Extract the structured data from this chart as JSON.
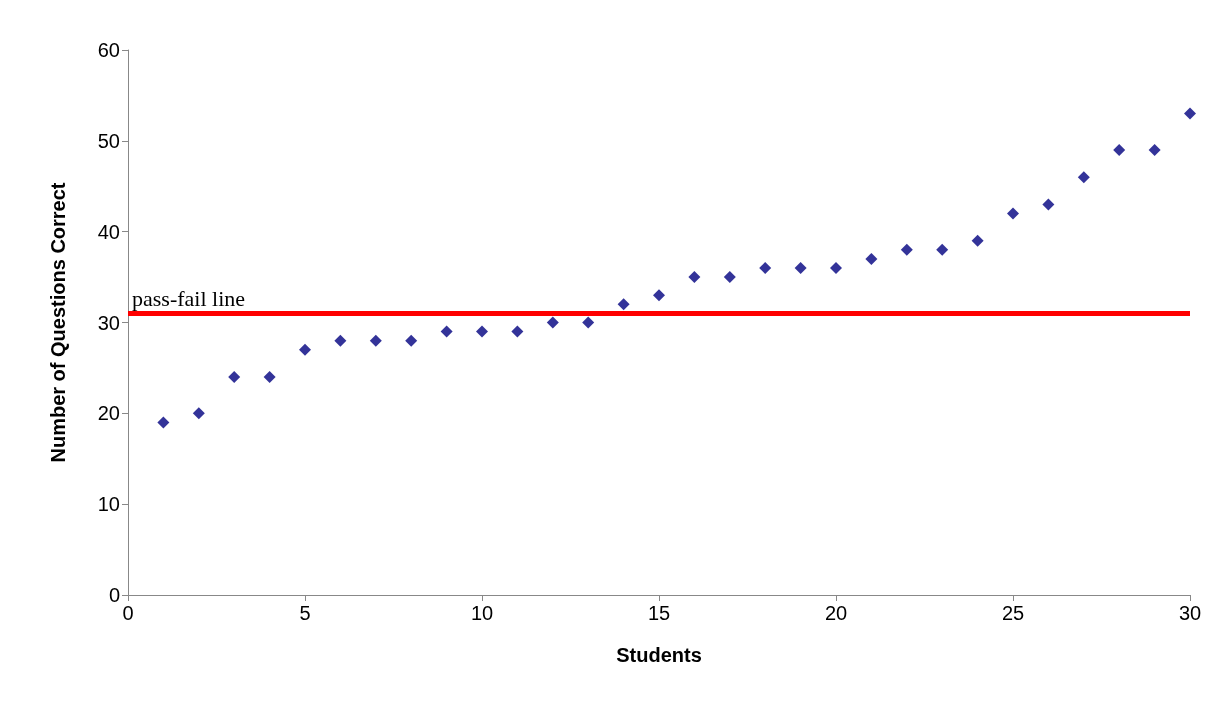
{
  "chart_data": {
    "type": "scatter",
    "xlabel": "Students",
    "ylabel": "Number of Questions Correct",
    "x": [
      1,
      2,
      3,
      4,
      5,
      6,
      7,
      8,
      9,
      10,
      11,
      12,
      13,
      14,
      15,
      16,
      17,
      18,
      19,
      20,
      21,
      22,
      23,
      24,
      25,
      26,
      27,
      28,
      29,
      30
    ],
    "series": [
      {
        "color": "#000080",
        "values": [
          19,
          20,
          24,
          24,
          27,
          28,
          28,
          28,
          29,
          29,
          29,
          30,
          30,
          32,
          33,
          35,
          35,
          36,
          36,
          36,
          37,
          38,
          38,
          39,
          42,
          43,
          46,
          49,
          49,
          53
        ]
      }
    ],
    "xlim": [
      0,
      30
    ],
    "xticks": [
      0,
      5,
      10,
      15,
      20,
      25,
      30
    ],
    "ylim": [
      0,
      60
    ],
    "yticks": [
      0,
      10,
      20,
      30,
      40,
      50,
      60
    ],
    "ref_lines": [
      {
        "axis": "y",
        "value": 31,
        "label": "pass-fail line",
        "color": "#ff0000",
        "line_style": "solid"
      }
    ],
    "marker": "diamond",
    "grid": false
  }
}
